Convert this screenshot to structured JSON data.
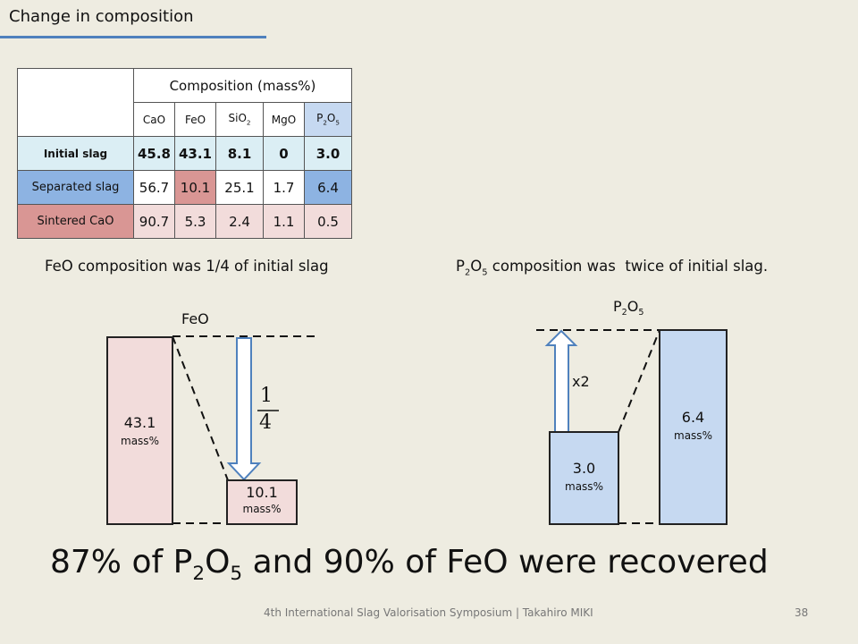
{
  "slide": {
    "title": "Change in composition"
  },
  "table": {
    "header_title": "Composition (mass%)",
    "columns": [
      {
        "base": "CaO",
        "sub": ""
      },
      {
        "base": "FeO",
        "sub": ""
      },
      {
        "base": "SiO",
        "sub": "2"
      },
      {
        "base": "MgO",
        "sub": ""
      },
      {
        "base": "P",
        "sub": "2",
        "base2": "O",
        "sub2": "5"
      }
    ],
    "rows": [
      {
        "label": "Initial slag",
        "values": [
          "45.8",
          "43.1",
          "8.1",
          "0",
          "3.0"
        ]
      },
      {
        "label": "Separated slag",
        "values": [
          "56.7",
          "10.1",
          "25.1",
          "1.7",
          "6.4"
        ]
      },
      {
        "label": "Sintered CaO",
        "values": [
          "90.7",
          "5.3",
          "2.4",
          "1.1",
          "0.5"
        ]
      }
    ]
  },
  "captions": {
    "feo": "FeO composition was 1/4 of initial slag",
    "p2o5_a": "P",
    "p2o5_sub1": "2",
    "p2o5_b": "O",
    "p2o5_sub2": "5",
    "p2o5_rest": " composition was  twice of initial slag."
  },
  "feo_diagram": {
    "label": "FeO",
    "initial_value": "43.1",
    "initial_unit": "mass%",
    "separated_value": "10.1",
    "separated_unit": "mass%",
    "fraction_num": "1",
    "fraction_den": "4"
  },
  "p2o5_diagram": {
    "label_a": "P",
    "label_sub1": "2",
    "label_b": "O",
    "label_sub2": "5",
    "initial_value": "3.0",
    "initial_unit": "mass%",
    "separated_value": "6.4",
    "separated_unit": "mass%",
    "multiplier": "x2"
  },
  "summary": {
    "a": "87% of P",
    "sub1": "2",
    "b": "O",
    "sub2": "5",
    "c": " and 90% of FeO were recovered"
  },
  "footer": {
    "text": "4th International Slag Valorisation Symposium | Takahiro MIKI",
    "page": "38"
  },
  "colors": {
    "background": "#eeece1",
    "accent_blue": "#4f81bd",
    "feo_bar": "#f2dcdb",
    "p2o5_bar": "#c6d9f1",
    "separated_row": "#8db3e2",
    "sintered_row": "#d99694",
    "initial_row": "#dbeef4"
  }
}
